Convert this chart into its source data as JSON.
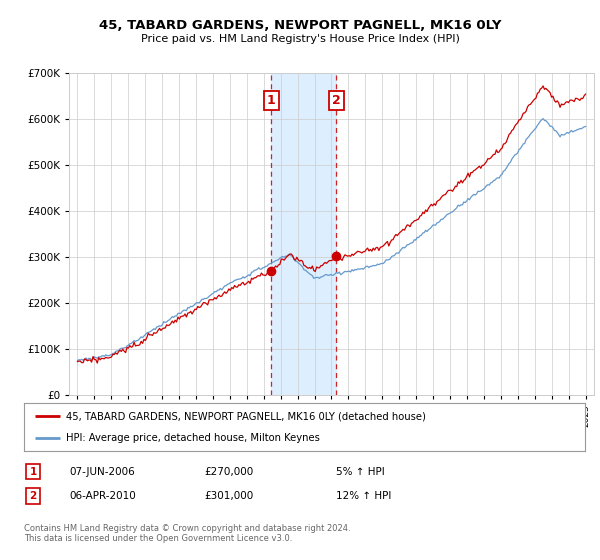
{
  "title": "45, TABARD GARDENS, NEWPORT PAGNELL, MK16 0LY",
  "subtitle": "Price paid vs. HM Land Registry's House Price Index (HPI)",
  "legend_line1": "45, TABARD GARDENS, NEWPORT PAGNELL, MK16 0LY (detached house)",
  "legend_line2": "HPI: Average price, detached house, Milton Keynes",
  "transaction1_date": "07-JUN-2006",
  "transaction1_price": "£270,000",
  "transaction1_hpi": "5% ↑ HPI",
  "transaction2_date": "06-APR-2010",
  "transaction2_price": "£301,000",
  "transaction2_hpi": "12% ↑ HPI",
  "footnote": "Contains HM Land Registry data © Crown copyright and database right 2024.\nThis data is licensed under the Open Government Licence v3.0.",
  "red_color": "#cc0000",
  "blue_color": "#6699cc",
  "shade_color": "#ddeeff",
  "grid_color": "#cccccc",
  "background_color": "#ffffff",
  "transaction1_x": 2006.44,
  "transaction2_x": 2010.27,
  "t1_price": 270000,
  "t2_price": 301000,
  "ylim_min": 0,
  "ylim_max": 700000,
  "xlim_min": 1994.5,
  "xlim_max": 2025.5
}
